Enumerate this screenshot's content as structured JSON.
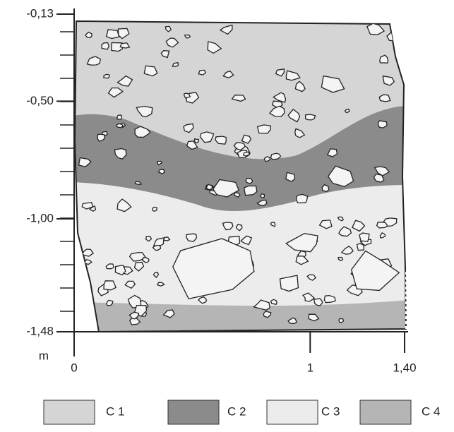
{
  "axes": {
    "y": {
      "unit": "m",
      "ticks": [
        {
          "value": -0.13,
          "label": "-0,13"
        },
        {
          "value": -0.5,
          "label": "-0,50"
        },
        {
          "value": -1,
          "label": "-1,00"
        },
        {
          "value": -1.48,
          "label": "-1,48"
        }
      ]
    },
    "x": {
      "ticks": [
        {
          "value": 0,
          "label": "0"
        },
        {
          "value": 1,
          "label": "1"
        },
        {
          "value": 1.4,
          "label": "1,40"
        }
      ]
    }
  },
  "legend": [
    {
      "label": "C 1",
      "color": "#d5d5d5"
    },
    {
      "label": "C 2",
      "color": "#8b8b8b"
    },
    {
      "label": "C 3",
      "color": "#ececec"
    },
    {
      "label": "C 4",
      "color": "#b5b5b5"
    }
  ]
}
